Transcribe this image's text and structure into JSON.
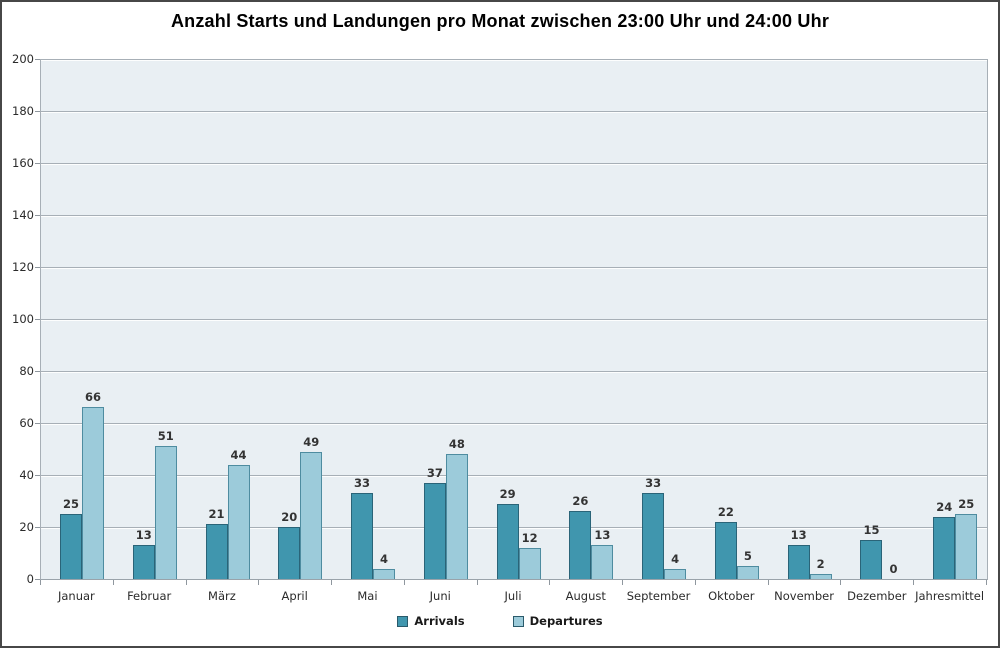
{
  "chart_data": {
    "type": "bar",
    "title": "Anzahl Starts und Landungen pro Monat zwischen 23:00 Uhr und 24:00 Uhr",
    "categories": [
      "Januar",
      "Februar",
      "März",
      "April",
      "Mai",
      "Juni",
      "Juli",
      "August",
      "September",
      "Oktober",
      "November",
      "Dezember",
      "Jahresmittel"
    ],
    "series": [
      {
        "name": "Arrivals",
        "color": "#4096AE",
        "border": "#2A6478",
        "values": [
          25,
          13,
          21,
          20,
          33,
          37,
          29,
          26,
          33,
          22,
          13,
          15,
          24
        ]
      },
      {
        "name": "Departures",
        "color": "#9CCBDA",
        "border": "#4E8CA0",
        "values": [
          66,
          51,
          44,
          49,
          4,
          48,
          12,
          13,
          4,
          5,
          2,
          0,
          25
        ]
      }
    ],
    "ylim": [
      0,
      200
    ],
    "ytick_step": 20,
    "y_tick_labels": [
      "0",
      "20",
      "40",
      "60",
      "80",
      "100",
      "120",
      "140",
      "160",
      "180",
      "200"
    ],
    "grid": true,
    "data_labels": true,
    "legend_position": "bottom",
    "plot_background": "#E9EFF3",
    "gridline_color": "#A7AFB6"
  }
}
